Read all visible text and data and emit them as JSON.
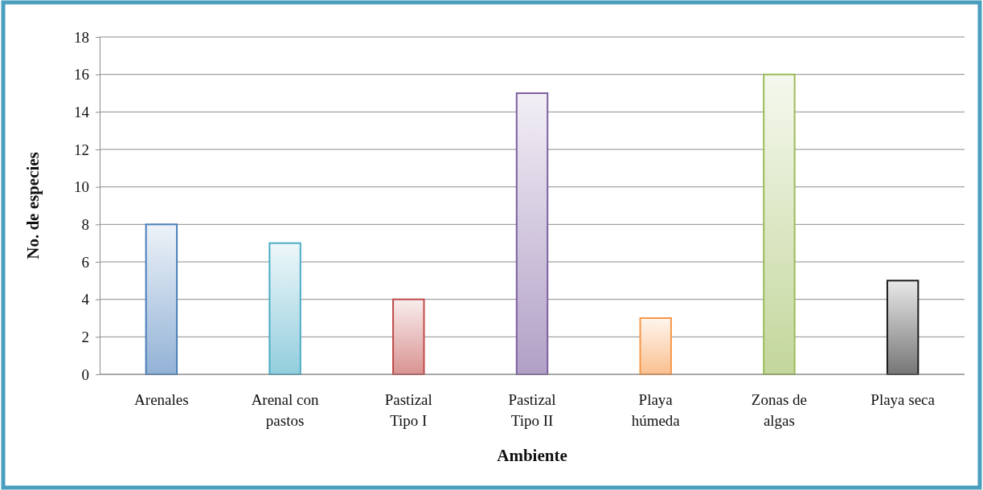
{
  "chart_data": {
    "type": "bar",
    "xlabel": "Ambiente",
    "ylabel": "No. de especies",
    "categories": [
      "Arenales",
      "Arenal con pastos",
      "Pastizal Tipo I",
      "Pastizal Tipo II",
      "Playa húmeda",
      "Zonas de algas",
      "Playa seca"
    ],
    "values": [
      8,
      7,
      4,
      15,
      3,
      16,
      5
    ],
    "colors": [
      "#4a7ebb",
      "#4bacc6",
      "#be4b48",
      "#7d60a0",
      "#f79646",
      "#9bbb59",
      "#1a1a1a"
    ],
    "ylim": [
      0,
      18
    ],
    "yticks": [
      0,
      2,
      4,
      6,
      8,
      10,
      12,
      14,
      16,
      18
    ],
    "grid": "y"
  }
}
